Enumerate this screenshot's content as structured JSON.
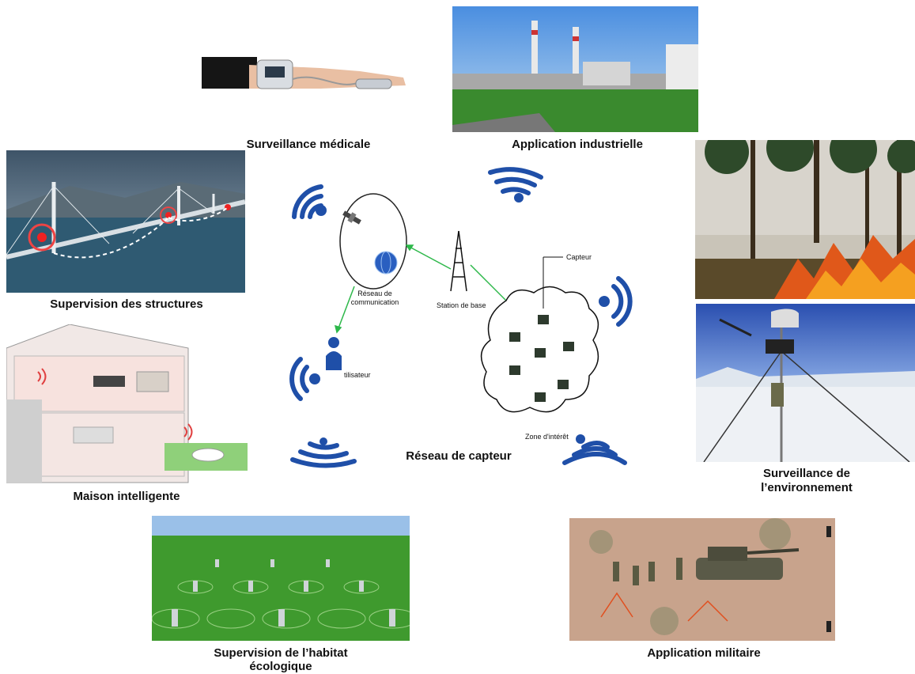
{
  "center": {
    "title": "Réseau de capteur",
    "network_label": "Réseau de communication",
    "base_station_label": "Station de base",
    "user_label": "tilisateur",
    "sensor_label": "Capteur",
    "zone_label": "Zone d'intérêt"
  },
  "applications": {
    "medical": "Surveillance médicale",
    "industrial": "Application industrielle",
    "structures": "Supervision des structures",
    "environment_line1": "Surveillance de",
    "environment_line2": "l’environnement",
    "smart_home": "Maison intelligente",
    "habitat_line1": "Supervision de l’habitat",
    "habitat_line2": "écologique",
    "military": "Application militaire"
  },
  "colors": {
    "wifi_blue": "#1f4fa8",
    "link_green": "#2db84a",
    "sky": "#6aa0d8",
    "grass": "#3f9a2e"
  },
  "icons": [
    "wifi-icon",
    "satellite-icon",
    "globe-icon",
    "tower-icon",
    "user-icon",
    "sensor-node-icon"
  ]
}
